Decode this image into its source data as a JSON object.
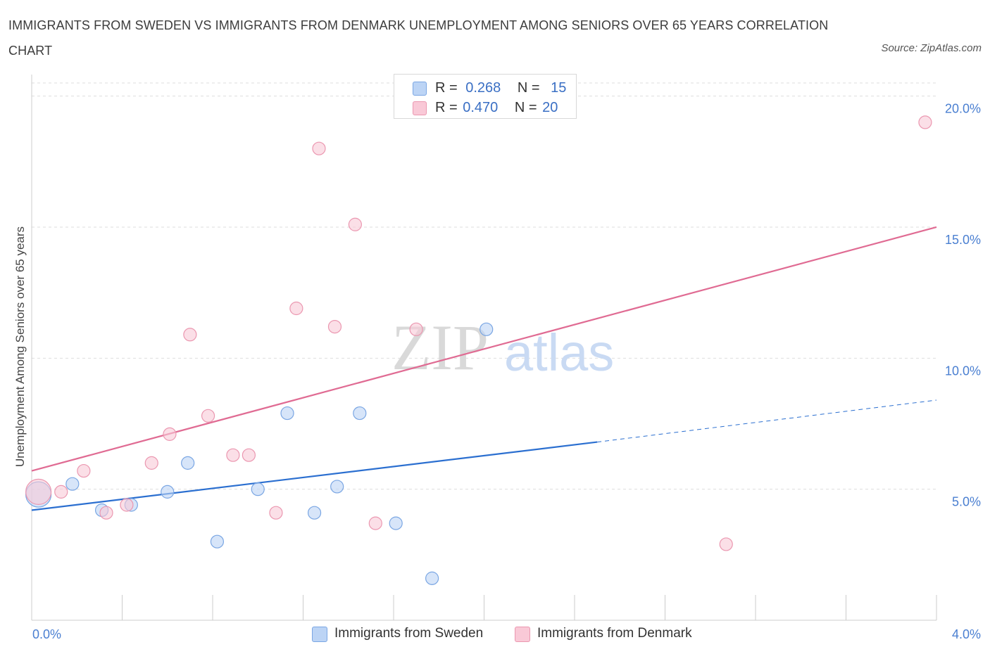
{
  "title": "IMMIGRANTS FROM SWEDEN VS IMMIGRANTS FROM DENMARK UNEMPLOYMENT AMONG SENIORS OVER 65 YEARS CORRELATION CHART",
  "source": "Source: ZipAtlas.com",
  "watermark": {
    "part1": "ZIP",
    "part2": "atlas"
  },
  "legend": {
    "r_label": "R =",
    "n_label": "N =",
    "rows": [
      {
        "r": "0.268",
        "n": "15"
      },
      {
        "r": "0.470",
        "n": "20"
      }
    ]
  },
  "bottom_legend": [
    "Immigrants from Sweden",
    "Immigrants from Denmark"
  ],
  "colors": {
    "sweden_fill": "#bcd4f5",
    "sweden_stroke": "#7aa6e3",
    "sweden_line": "#2b6fd0",
    "denmark_fill": "#f9c9d7",
    "denmark_stroke": "#eb97b0",
    "denmark_line": "#e06b93",
    "grid": "#dddddd",
    "tick_label": "#4a7fd1"
  },
  "chart_data": {
    "type": "scatter",
    "title": "IMMIGRANTS FROM SWEDEN VS IMMIGRANTS FROM DENMARK UNEMPLOYMENT AMONG SENIORS OVER 65 YEARS CORRELATION CHART",
    "xlabel": "",
    "ylabel": "Unemployment Among Seniors over 65 years",
    "xlim": [
      0,
      4.0
    ],
    "ylim": [
      0,
      20.5
    ],
    "x_ticks": [
      0,
      4.0
    ],
    "x_tick_labels": [
      "0.0%",
      "4.0%"
    ],
    "y_ticks": [
      5,
      10,
      15,
      20
    ],
    "y_tick_labels": [
      "5.0%",
      "10.0%",
      "15.0%",
      "20.0%"
    ],
    "grid": true,
    "legend_placement": "top-center",
    "series": [
      {
        "name": "Immigrants from Sweden",
        "r": 0.268,
        "n": 15,
        "points": [
          {
            "x": 0.03,
            "y": 4.8,
            "size": 18
          },
          {
            "x": 0.18,
            "y": 5.2,
            "size": 9
          },
          {
            "x": 0.31,
            "y": 4.2,
            "size": 9
          },
          {
            "x": 0.44,
            "y": 4.4,
            "size": 9
          },
          {
            "x": 0.6,
            "y": 4.9,
            "size": 9
          },
          {
            "x": 0.69,
            "y": 6.0,
            "size": 9
          },
          {
            "x": 0.82,
            "y": 3.0,
            "size": 9
          },
          {
            "x": 1.0,
            "y": 5.0,
            "size": 9
          },
          {
            "x": 1.13,
            "y": 7.9,
            "size": 9
          },
          {
            "x": 1.25,
            "y": 4.1,
            "size": 9
          },
          {
            "x": 1.35,
            "y": 5.1,
            "size": 9
          },
          {
            "x": 1.45,
            "y": 7.9,
            "size": 9
          },
          {
            "x": 1.61,
            "y": 3.7,
            "size": 9
          },
          {
            "x": 1.77,
            "y": 1.6,
            "size": 9
          },
          {
            "x": 2.01,
            "y": 11.1,
            "size": 9
          }
        ],
        "trend": {
          "x0": 0,
          "y0": 4.2,
          "x1": 2.5,
          "y1": 6.8,
          "dashed_to_x": 4.0,
          "dashed_to_y": 8.4
        }
      },
      {
        "name": "Immigrants from Denmark",
        "r": 0.47,
        "n": 20,
        "points": [
          {
            "x": 0.03,
            "y": 4.9,
            "size": 18
          },
          {
            "x": 0.13,
            "y": 4.9,
            "size": 9
          },
          {
            "x": 0.23,
            "y": 5.7,
            "size": 9
          },
          {
            "x": 0.33,
            "y": 4.1,
            "size": 9
          },
          {
            "x": 0.42,
            "y": 4.4,
            "size": 9
          },
          {
            "x": 0.53,
            "y": 6.0,
            "size": 9
          },
          {
            "x": 0.61,
            "y": 7.1,
            "size": 9
          },
          {
            "x": 0.7,
            "y": 10.9,
            "size": 9
          },
          {
            "x": 0.78,
            "y": 7.8,
            "size": 9
          },
          {
            "x": 0.89,
            "y": 6.3,
            "size": 9
          },
          {
            "x": 0.96,
            "y": 6.3,
            "size": 9
          },
          {
            "x": 1.08,
            "y": 4.1,
            "size": 9
          },
          {
            "x": 1.17,
            "y": 11.9,
            "size": 9
          },
          {
            "x": 1.27,
            "y": 18.0,
            "size": 9
          },
          {
            "x": 1.34,
            "y": 11.2,
            "size": 9
          },
          {
            "x": 1.43,
            "y": 15.1,
            "size": 9
          },
          {
            "x": 1.52,
            "y": 3.7,
            "size": 9
          },
          {
            "x": 1.7,
            "y": 11.1,
            "size": 9
          },
          {
            "x": 3.07,
            "y": 2.9,
            "size": 9
          },
          {
            "x": 3.95,
            "y": 19.0,
            "size": 9
          }
        ],
        "trend": {
          "x0": 0,
          "y0": 5.7,
          "x1": 4.0,
          "y1": 15.0
        }
      }
    ]
  }
}
